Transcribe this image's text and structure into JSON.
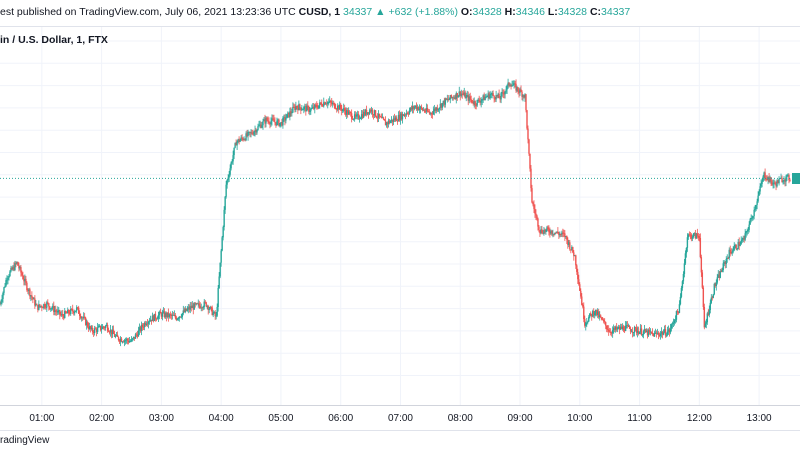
{
  "header": {
    "publisher": "est published on TradingView.com, July 06, 2021 13:23:36 UTC",
    "symbol": "CUSD, 1",
    "last": "34337",
    "change": "+632 (+1.88%)",
    "open_label": "O:",
    "open": "34328",
    "high_label": "H:",
    "high": "34346",
    "low_label": "L:",
    "low": "34328",
    "close_label": "C:",
    "close": "34337"
  },
  "chart_title": "in / U.S. Dollar, 1, FTX",
  "footer": {
    "brand": "radingView"
  },
  "colors": {
    "up": "#26a69a",
    "down": "#ef5350",
    "grid": "#f0f3fa",
    "price_line": "#26a69a",
    "axis_text": "#131722"
  },
  "chart_data": {
    "type": "candlestick",
    "title": "in / U.S. Dollar, 1, FTX",
    "x_ticks": [
      "01:00",
      "02:00",
      "03:00",
      "04:00",
      "05:00",
      "06:00",
      "07:00",
      "08:00",
      "09:00",
      "10:00",
      "11:00",
      "12:00",
      "13:00"
    ],
    "x_range": [
      "00:18",
      "13:31"
    ],
    "grid": true,
    "last_price": 34337,
    "price_path": [
      [
        "00:18",
        33600
      ],
      [
        "00:25",
        33760
      ],
      [
        "00:35",
        33840
      ],
      [
        "00:45",
        33700
      ],
      [
        "00:55",
        33580
      ],
      [
        "01:05",
        33600
      ],
      [
        "01:20",
        33530
      ],
      [
        "01:35",
        33570
      ],
      [
        "01:50",
        33440
      ],
      [
        "02:05",
        33470
      ],
      [
        "02:15",
        33400
      ],
      [
        "02:30",
        33380
      ],
      [
        "02:45",
        33500
      ],
      [
        "03:00",
        33540
      ],
      [
        "03:15",
        33520
      ],
      [
        "03:30",
        33580
      ],
      [
        "03:45",
        33600
      ],
      [
        "03:55",
        33520
      ],
      [
        "04:05",
        34300
      ],
      [
        "04:15",
        34550
      ],
      [
        "04:30",
        34600
      ],
      [
        "04:45",
        34680
      ],
      [
        "05:00",
        34660
      ],
      [
        "05:15",
        34760
      ],
      [
        "05:30",
        34740
      ],
      [
        "05:45",
        34790
      ],
      [
        "06:00",
        34750
      ],
      [
        "06:15",
        34690
      ],
      [
        "06:30",
        34740
      ],
      [
        "06:45",
        34660
      ],
      [
        "07:00",
        34700
      ],
      [
        "07:15",
        34760
      ],
      [
        "07:30",
        34720
      ],
      [
        "07:45",
        34790
      ],
      [
        "08:00",
        34840
      ],
      [
        "08:15",
        34780
      ],
      [
        "08:30",
        34830
      ],
      [
        "08:40",
        34810
      ],
      [
        "08:50",
        34900
      ],
      [
        "09:05",
        34820
      ],
      [
        "09:12",
        34200
      ],
      [
        "09:20",
        34030
      ],
      [
        "09:30",
        34030
      ],
      [
        "09:45",
        34000
      ],
      [
        "09:55",
        33880
      ],
      [
        "10:05",
        33490
      ],
      [
        "10:15",
        33560
      ],
      [
        "10:30",
        33440
      ],
      [
        "10:45",
        33460
      ],
      [
        "11:00",
        33440
      ],
      [
        "11:15",
        33420
      ],
      [
        "11:30",
        33440
      ],
      [
        "11:40",
        33580
      ],
      [
        "11:48",
        34000
      ],
      [
        "12:00",
        34000
      ],
      [
        "12:05",
        33460
      ],
      [
        "12:15",
        33700
      ],
      [
        "12:30",
        33900
      ],
      [
        "12:45",
        33980
      ],
      [
        "12:55",
        34150
      ],
      [
        "13:05",
        34360
      ],
      [
        "13:15",
        34300
      ],
      [
        "13:24",
        34337
      ]
    ]
  }
}
